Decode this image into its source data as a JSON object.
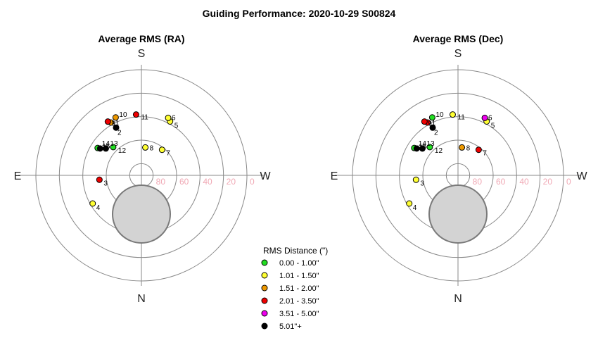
{
  "title": "Guiding Performance: 2020-10-29 S00824",
  "colors": {
    "green": "#22dd22",
    "yellow": "#ffff33",
    "orange": "#ee9900",
    "red": "#ee0000",
    "magenta": "#ee00ee",
    "black": "#000000",
    "grid": "#888888",
    "alt_tick": "#f0a8b4",
    "obstruction": "#d3d3d3"
  },
  "compass": {
    "north": "N",
    "south": "S",
    "east": "E",
    "west": "W"
  },
  "alt_ticks": [
    "80",
    "60",
    "40",
    "20",
    "0"
  ],
  "legend": {
    "title": "RMS Distance (\")",
    "items": [
      {
        "label": "0.00 - 1.00\"",
        "color": "green"
      },
      {
        "label": "1.01 - 1.50\"",
        "color": "yellow"
      },
      {
        "label": "1.51 - 2.00\"",
        "color": "orange"
      },
      {
        "label": "2.01 - 3.50\"",
        "color": "red"
      },
      {
        "label": "3.51 - 5.00\"",
        "color": "magenta"
      },
      {
        "label": "5.01\"+",
        "color": "black"
      }
    ]
  },
  "chart_data": [
    {
      "type": "polar-scatter",
      "title": "Average RMS (RA)",
      "axis": "altitude (deg), azimuth (deg)",
      "points": [
        {
          "label": "1",
          "az": 150,
          "alt": 38,
          "color": "orange"
        },
        {
          "label": "2",
          "az": 152,
          "alt": 44,
          "color": "black"
        },
        {
          "label": "3",
          "az": 84,
          "alt": 54,
          "color": "red"
        },
        {
          "label": "4",
          "az": 60,
          "alt": 42,
          "color": "yellow"
        },
        {
          "label": "5",
          "az": 208,
          "alt": 38,
          "color": "yellow"
        },
        {
          "label": "6",
          "az": 205,
          "alt": 36,
          "color": "yellow"
        },
        {
          "label": "7",
          "az": 219,
          "alt": 62,
          "color": "yellow"
        },
        {
          "label": "8",
          "az": 188,
          "alt": 66,
          "color": "yellow"
        },
        {
          "label": "9",
          "az": 148,
          "alt": 36,
          "color": "red"
        },
        {
          "label": "10",
          "az": 156,
          "alt": 36,
          "color": "orange"
        },
        {
          "label": "11",
          "az": 175,
          "alt": 38,
          "color": "red"
        },
        {
          "label": "12",
          "az": 135,
          "alt": 56,
          "color": "green"
        },
        {
          "label": "13",
          "az": 127,
          "alt": 52,
          "color": "black"
        },
        {
          "label": "14",
          "az": 122,
          "alt": 46,
          "color": "green"
        },
        {
          "label": "15",
          "az": 123,
          "alt": 48,
          "color": "black"
        }
      ]
    },
    {
      "type": "polar-scatter",
      "title": "Average RMS (Dec)",
      "axis": "altitude (deg), azimuth (deg)",
      "points": [
        {
          "label": "1",
          "az": 150,
          "alt": 38,
          "color": "red"
        },
        {
          "label": "2",
          "az": 152,
          "alt": 44,
          "color": "black"
        },
        {
          "label": "3",
          "az": 84,
          "alt": 54,
          "color": "yellow"
        },
        {
          "label": "4",
          "az": 60,
          "alt": 42,
          "color": "yellow"
        },
        {
          "label": "5",
          "az": 208,
          "alt": 38,
          "color": "yellow"
        },
        {
          "label": "6",
          "az": 205,
          "alt": 36,
          "color": "magenta"
        },
        {
          "label": "7",
          "az": 219,
          "alt": 62,
          "color": "red"
        },
        {
          "label": "8",
          "az": 188,
          "alt": 66,
          "color": "orange"
        },
        {
          "label": "9",
          "az": 148,
          "alt": 36,
          "color": "red"
        },
        {
          "label": "10",
          "az": 156,
          "alt": 36,
          "color": "green"
        },
        {
          "label": "11",
          "az": 175,
          "alt": 38,
          "color": "yellow"
        },
        {
          "label": "12",
          "az": 135,
          "alt": 56,
          "color": "green"
        },
        {
          "label": "13",
          "az": 127,
          "alt": 52,
          "color": "black"
        },
        {
          "label": "14",
          "az": 122,
          "alt": 46,
          "color": "green"
        },
        {
          "label": "15",
          "az": 123,
          "alt": 48,
          "color": "black"
        }
      ]
    }
  ]
}
